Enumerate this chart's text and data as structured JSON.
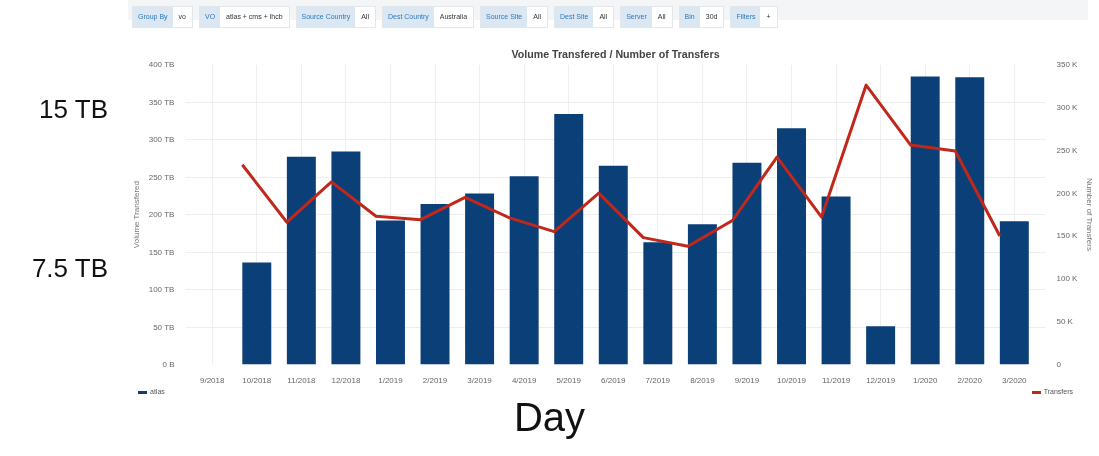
{
  "chart_data": {
    "type": "bar",
    "title": "Volume Transfered / Number of Transfers",
    "ylabel": "Volume Transfered",
    "y2label": "Number of Transfers",
    "categories": [
      "9/2018",
      "10/2018",
      "11/2018",
      "12/2018",
      "1/2019",
      "2/2019",
      "3/2019",
      "4/2019",
      "5/2019",
      "6/2019",
      "7/2019",
      "8/2019",
      "9/2019",
      "10/2019",
      "11/2019",
      "12/2019",
      "1/2020",
      "2/2020",
      "3/2020"
    ],
    "series": [
      {
        "name": "atlas",
        "color": "#0b3f78",
        "values": [
          null,
          136,
          277,
          284,
          192,
          214,
          228,
          251,
          334,
          265,
          163,
          187,
          269,
          315,
          224,
          51,
          384,
          383,
          191
        ]
      },
      {
        "name": "Transfers",
        "type": "line",
        "axis": "y2",
        "color": "#c0281c",
        "values": [
          null,
          233,
          166,
          213,
          173,
          169,
          195,
          171,
          155,
          200,
          148,
          138,
          168,
          242,
          172,
          326,
          256,
          249,
          150
        ]
      }
    ],
    "ylim": [
      0,
      400
    ],
    "yticks": [
      {
        "value": 0,
        "label": "0 B"
      },
      {
        "value": 50,
        "label": "50 TB"
      },
      {
        "value": 100,
        "label": "100 TB"
      },
      {
        "value": 150,
        "label": "150 TB"
      },
      {
        "value": 200,
        "label": "200 TB"
      },
      {
        "value": 250,
        "label": "250 TB"
      },
      {
        "value": 300,
        "label": "300 TB"
      },
      {
        "value": 350,
        "label": "350 TB"
      },
      {
        "value": 400,
        "label": "400 TB"
      }
    ],
    "y2lim": [
      0,
      350
    ],
    "y2ticks": [
      0,
      {
        "value": 50,
        "label": "50 K"
      },
      {
        "value": 100,
        "label": "100 K"
      },
      {
        "value": 150,
        "label": "150 K"
      },
      {
        "value": 200,
        "label": "200 K"
      },
      {
        "value": 250,
        "label": "250 K"
      },
      {
        "value": 300,
        "label": "300 K"
      },
      {
        "value": 350,
        "label": "350 K"
      }
    ],
    "grid": true,
    "legend": "bottom",
    "annotations": [
      "Group By",
      "vo",
      "VO",
      "atlas + cms + lhcb",
      "Source Country",
      "All",
      "Dest Country",
      "Australia",
      "Source Site",
      "All",
      "Dest Site",
      "All",
      "Server",
      "All",
      "Bin",
      "30d",
      "Filters",
      "+",
      "15 TB",
      "7.5 TB",
      "Day"
    ]
  }
}
